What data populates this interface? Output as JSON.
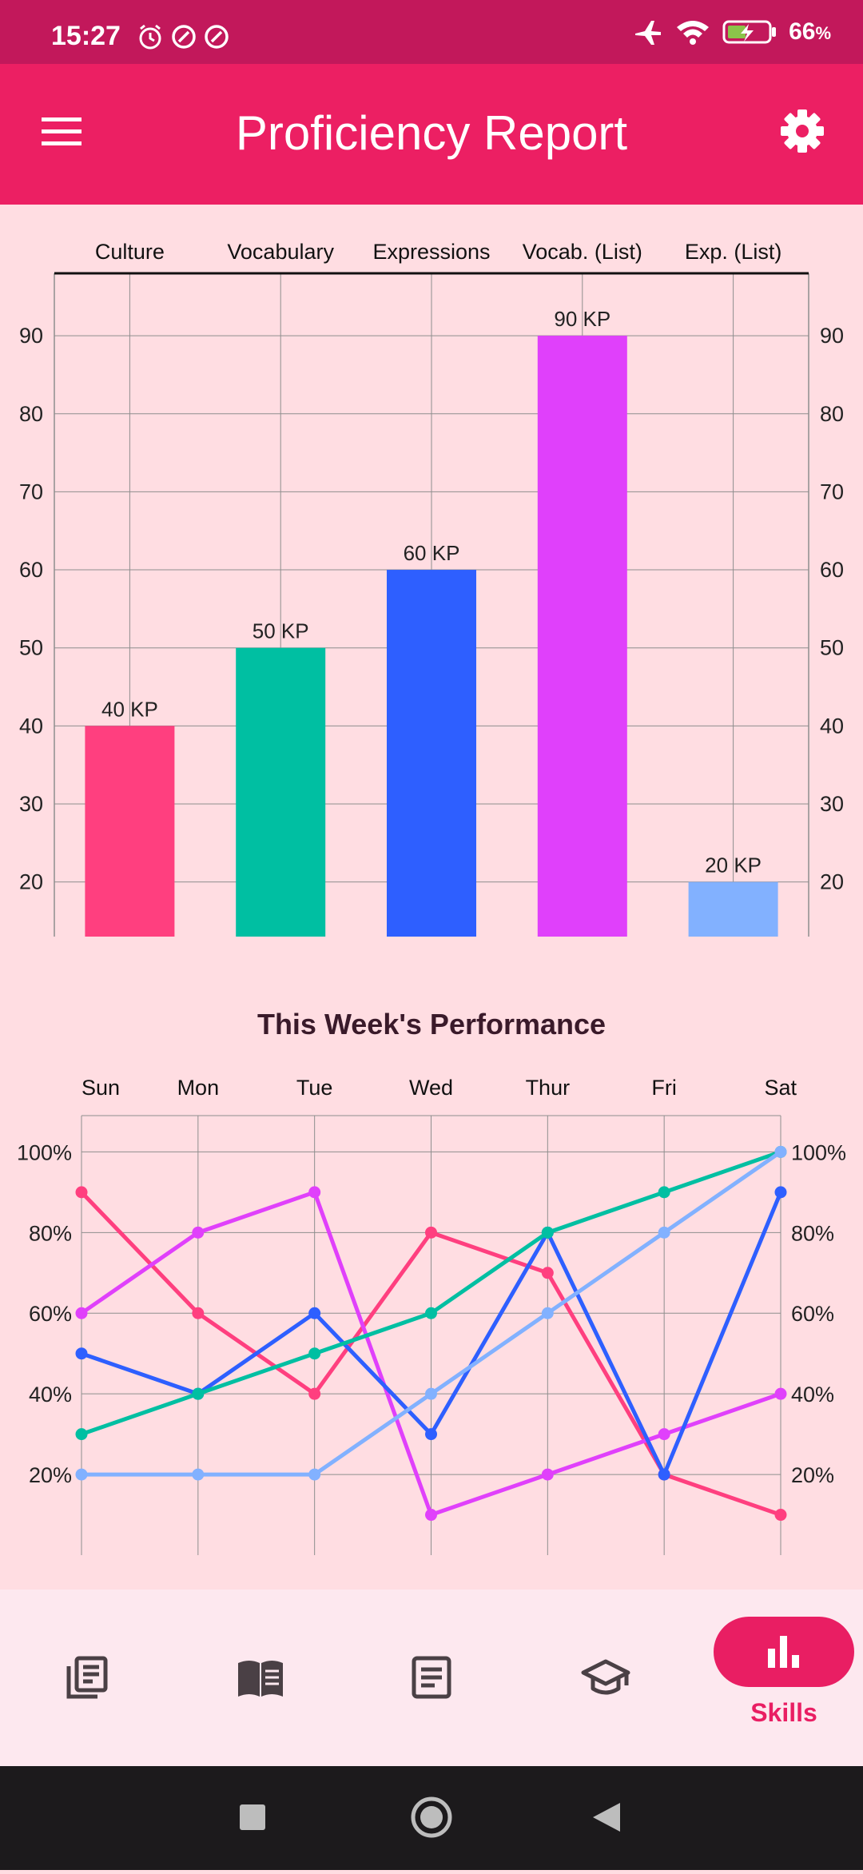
{
  "status_bar": {
    "time": "15:27",
    "battery": "66",
    "battery_unit": "%",
    "left_icons": [
      "alarm-icon",
      "data-saver-icon",
      "data-saver-icon"
    ],
    "right_icons": [
      "airplane-mode-icon",
      "wifi-icon",
      "battery-charging-icon"
    ]
  },
  "app_bar": {
    "title": "Proficiency Report",
    "menu_icon": "menu-icon",
    "settings_icon": "gear-icon",
    "color": "#EC1F63"
  },
  "chart_data": [
    {
      "type": "bar",
      "categories": [
        "Culture",
        "Vocabulary",
        "Expressions",
        "Vocab. (List)",
        "Exp. (List)"
      ],
      "values": [
        40,
        50,
        60,
        90,
        20
      ],
      "value_labels": [
        "40 KP",
        "50 KP",
        "60 KP",
        "90 KP",
        "20 KP"
      ],
      "colors": [
        "#FF3F7F",
        "#00BFA2",
        "#2E5FFF",
        "#E040FB",
        "#82B1FF"
      ],
      "y_ticks": [
        "20",
        "30",
        "40",
        "50",
        "60",
        "70",
        "80",
        "90"
      ],
      "ylim": [
        13,
        98
      ],
      "grid": true,
      "category_axis": "top"
    },
    {
      "type": "line",
      "title": "This Week's Performance",
      "x": [
        "Sun",
        "Mon",
        "Tue",
        "Wed",
        "Thur",
        "Fri",
        "Sat"
      ],
      "y_ticks": [
        "20%",
        "40%",
        "60%",
        "80%",
        "100%"
      ],
      "ylim": [
        0,
        109
      ],
      "grid": true,
      "series": [
        {
          "color": "#FF3F7F",
          "values": [
            90,
            60,
            40,
            80,
            70,
            20,
            10
          ]
        },
        {
          "color": "#E040FB",
          "values": [
            60,
            80,
            90,
            10,
            20,
            30,
            40
          ]
        },
        {
          "color": "#2E5FFF",
          "values": [
            50,
            40,
            60,
            30,
            80,
            20,
            90
          ]
        },
        {
          "color": "#00BFA2",
          "values": [
            30,
            40,
            50,
            60,
            80,
            90,
            100
          ]
        },
        {
          "color": "#82B1FF",
          "values": [
            20,
            20,
            20,
            40,
            60,
            80,
            100
          ]
        }
      ]
    }
  ],
  "bottom_nav": {
    "items": [
      {
        "icon": "notes-stack-icon"
      },
      {
        "icon": "open-book-icon"
      },
      {
        "icon": "article-icon"
      },
      {
        "icon": "graduation-cap-icon"
      },
      {
        "icon": "bar-chart-icon",
        "label": "Skills",
        "active": true
      }
    ],
    "active_color": "#E91E63"
  },
  "system_nav": {
    "icons": [
      "recents-square-icon",
      "home-circle-icon",
      "back-triangle-icon"
    ]
  }
}
